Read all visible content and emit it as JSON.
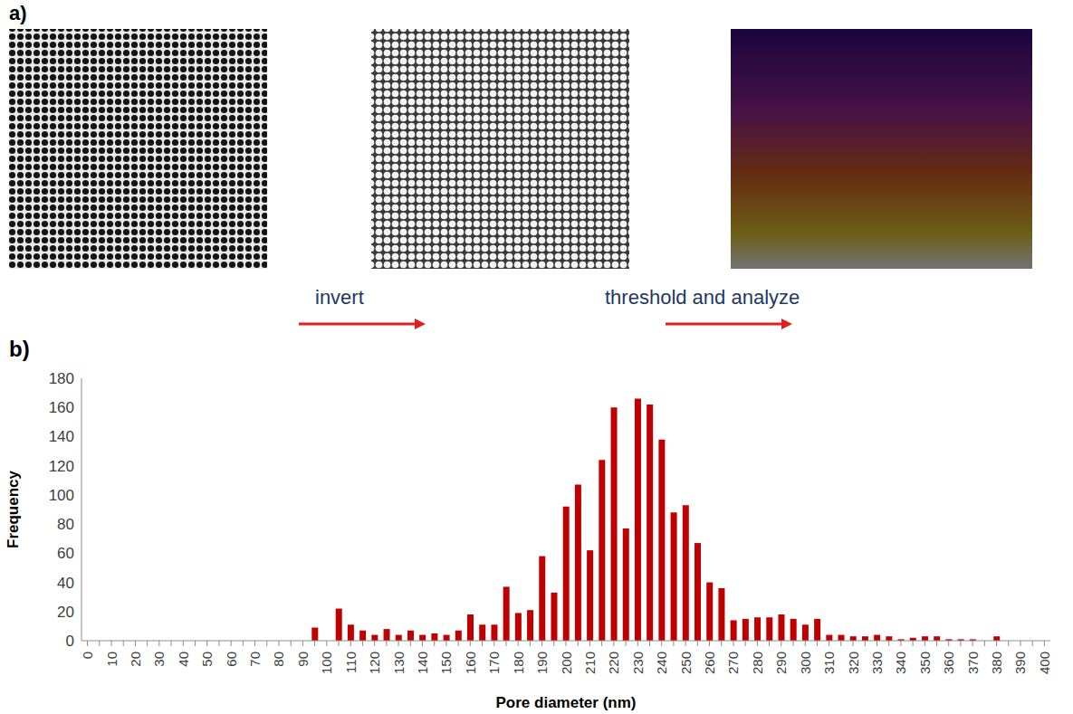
{
  "panel_labels": [
    "a)",
    "b)"
  ],
  "steps": [
    "invert",
    "threshold and analyze"
  ],
  "chart_data": {
    "type": "bar",
    "xlabel": "Pore diameter (nm)",
    "ylabel": "Frequency",
    "categories": [
      0,
      null,
      10,
      null,
      20,
      null,
      30,
      null,
      40,
      null,
      50,
      null,
      60,
      null,
      70,
      null,
      80,
      null,
      90,
      null,
      100,
      null,
      110,
      null,
      120,
      null,
      130,
      null,
      140,
      null,
      150,
      null,
      160,
      null,
      170,
      null,
      180,
      null,
      190,
      null,
      200,
      null,
      210,
      null,
      220,
      null,
      230,
      null,
      240,
      null,
      250,
      null,
      260,
      null,
      270,
      null,
      280,
      null,
      290,
      null,
      300,
      null,
      310,
      null,
      320,
      null,
      330,
      null,
      340,
      null,
      350,
      null,
      360,
      null,
      370,
      null,
      380,
      null,
      390,
      null,
      400
    ],
    "values": [
      0,
      0,
      0,
      0,
      0,
      0,
      0,
      0,
      0,
      0,
      0,
      0,
      0,
      0,
      0,
      0,
      0,
      0,
      0,
      9,
      0,
      22,
      11,
      7,
      4,
      8,
      4,
      7,
      4,
      5,
      4,
      7,
      18,
      11,
      11,
      37,
      19,
      21,
      58,
      33,
      92,
      107,
      62,
      124,
      160,
      77,
      166,
      162,
      138,
      88,
      93,
      67,
      40,
      36,
      14,
      15,
      16,
      16,
      18,
      15,
      11,
      15,
      4,
      4,
      3,
      3,
      4,
      3,
      1,
      2,
      3,
      3,
      1,
      1,
      1,
      0,
      3,
      0,
      0,
      0,
      0
    ],
    "color": "#c00000",
    "ylim": [
      0,
      180
    ],
    "yticks": [
      0,
      20,
      40,
      60,
      80,
      100,
      120,
      140,
      160,
      180
    ],
    "grid": false
  }
}
